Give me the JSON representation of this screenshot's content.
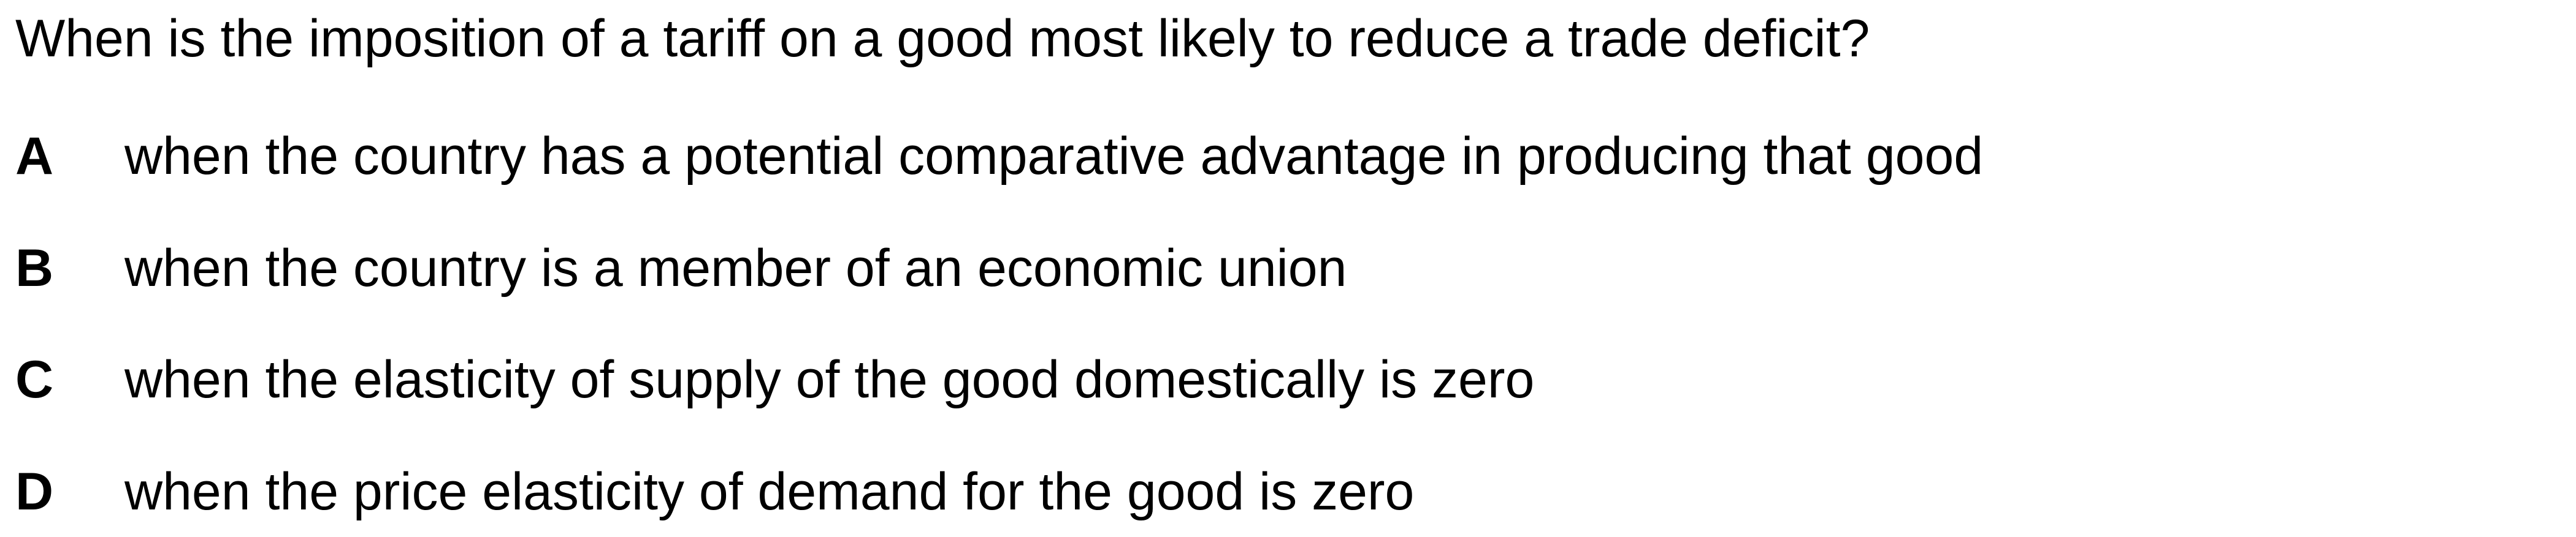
{
  "question": "When is the imposition of a tariff on a good most likely to reduce a trade deficit?",
  "options": [
    {
      "letter": "A",
      "text": "when the country has a potential comparative advantage in producing that good"
    },
    {
      "letter": "B",
      "text": "when the country is a member of an economic union"
    },
    {
      "letter": "C",
      "text": "when the elasticity of supply of the good domestically is zero"
    },
    {
      "letter": "D",
      "text": "when the price elasticity of demand for the good is zero"
    }
  ]
}
